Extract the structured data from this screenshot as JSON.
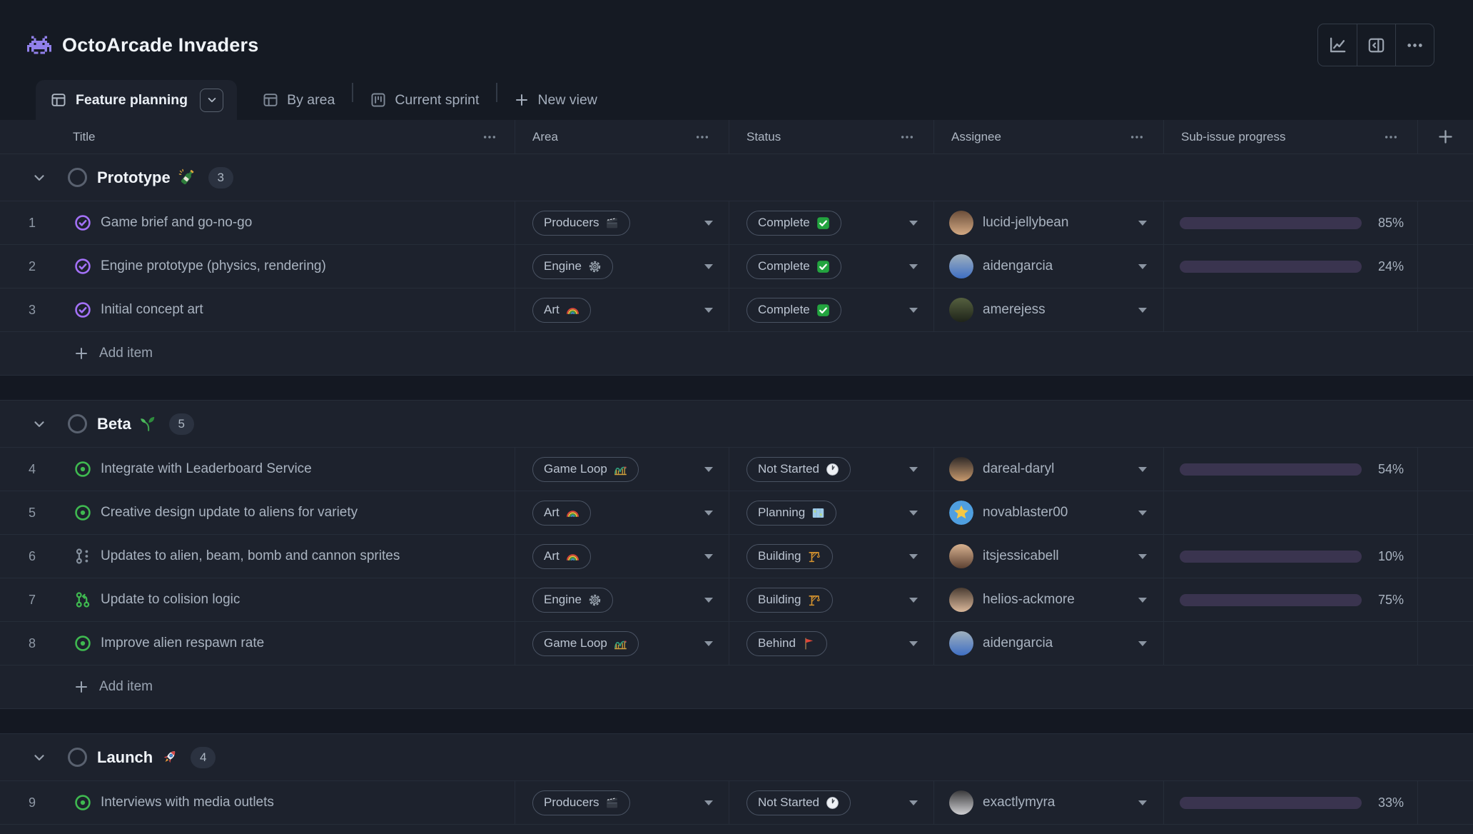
{
  "app": {
    "title": "OctoArcade Invaders",
    "title_icon": "space-invader"
  },
  "header_actions": [
    {
      "name": "insights",
      "icon": "line-chart"
    },
    {
      "name": "side-panel",
      "icon": "panel"
    },
    {
      "name": "more-options",
      "icon": "kebab"
    }
  ],
  "tabs": {
    "items": [
      {
        "label": "Feature planning",
        "icon": "table",
        "active": true,
        "has_menu": true
      },
      {
        "label": "By area",
        "icon": "table",
        "active": false
      },
      {
        "label": "Current sprint",
        "icon": "project",
        "active": false
      }
    ],
    "new_view_label": "New view"
  },
  "table": {
    "columns": [
      {
        "label": "Title"
      },
      {
        "label": "Area"
      },
      {
        "label": "Status"
      },
      {
        "label": "Assignee"
      },
      {
        "label": "Sub-issue progress"
      }
    ],
    "add_item_label": "Add item"
  },
  "groups": [
    {
      "name": "Prototype",
      "emoji": "champagne-bottle",
      "count": 3,
      "add_item": true,
      "gap_after": true,
      "rows": [
        {
          "number": 1,
          "title": "Game brief and go-no-go",
          "title_icon": "issue-closed",
          "area": {
            "label": "Producers",
            "emoji": "clapper-board"
          },
          "status": {
            "label": "Complete",
            "emoji": "check-mark"
          },
          "assignee": {
            "username": "lucid-jellybean",
            "avatar": "photo",
            "avatar_colors": [
              "#6b4e3a",
              "#d3a983"
            ]
          },
          "progress": 85
        },
        {
          "number": 2,
          "title": "Engine prototype (physics, rendering)",
          "title_icon": "issue-closed",
          "area": {
            "label": "Engine",
            "emoji": "gear"
          },
          "status": {
            "label": "Complete",
            "emoji": "check-mark"
          },
          "assignee": {
            "username": "aidengarcia",
            "avatar": "photo",
            "avatar_colors": [
              "#9fb0bd",
              "#3f6fc4"
            ]
          },
          "progress": 24
        },
        {
          "number": 3,
          "title": "Initial concept art",
          "title_icon": "issue-closed",
          "area": {
            "label": "Art",
            "emoji": "rainbow"
          },
          "status": {
            "label": "Complete",
            "emoji": "check-mark"
          },
          "assignee": {
            "username": "amerejess",
            "avatar": "photo",
            "avatar_colors": [
              "#55603f",
              "#1f241a"
            ]
          },
          "progress": null
        }
      ]
    },
    {
      "name": "Beta",
      "emoji": "seedling",
      "count": 5,
      "add_item": true,
      "gap_after": true,
      "rows": [
        {
          "number": 4,
          "title": "Integrate with Leaderboard Service",
          "title_icon": "issue-open",
          "area": {
            "label": "Game Loop",
            "emoji": "roller-coaster"
          },
          "status": {
            "label": "Not Started",
            "emoji": "clock"
          },
          "assignee": {
            "username": "dareal-daryl",
            "avatar": "photo",
            "avatar_colors": [
              "#2f2a28",
              "#c89a6e"
            ]
          },
          "progress": 54
        },
        {
          "number": 5,
          "title": "Creative design update to aliens for variety",
          "title_icon": "issue-open",
          "area": {
            "label": "Art",
            "emoji": "rainbow"
          },
          "status": {
            "label": "Planning",
            "emoji": "world-map"
          },
          "assignee": {
            "username": "novablaster00",
            "avatar": "star",
            "avatar_colors": [
              "#4f9fe0",
              "#4f9fe0"
            ]
          },
          "progress": null
        },
        {
          "number": 6,
          "title": "Updates to alien, beam, bomb and cannon sprites",
          "title_icon": "merge-queue",
          "area": {
            "label": "Art",
            "emoji": "rainbow"
          },
          "status": {
            "label": "Building",
            "emoji": "crane"
          },
          "assignee": {
            "username": "itsjessicabell",
            "avatar": "photo",
            "avatar_colors": [
              "#d7b18f",
              "#5d4233"
            ]
          },
          "progress": 10
        },
        {
          "number": 7,
          "title": "Update to colision logic",
          "title_icon": "pull-request",
          "area": {
            "label": "Engine",
            "emoji": "gear"
          },
          "status": {
            "label": "Building",
            "emoji": "crane"
          },
          "assignee": {
            "username": "helios-ackmore",
            "avatar": "photo",
            "avatar_colors": [
              "#4a3c32",
              "#d9b79a"
            ]
          },
          "progress": 75
        },
        {
          "number": 8,
          "title": "Improve alien respawn rate",
          "title_icon": "issue-open",
          "area": {
            "label": "Game Loop",
            "emoji": "roller-coaster"
          },
          "status": {
            "label": "Behind",
            "emoji": "triangular-flag"
          },
          "assignee": {
            "username": "aidengarcia",
            "avatar": "photo",
            "avatar_colors": [
              "#9fb0bd",
              "#3f6fc4"
            ]
          },
          "progress": null
        }
      ]
    },
    {
      "name": "Launch",
      "emoji": "rocket",
      "count": 4,
      "add_item": false,
      "gap_after": false,
      "rows": [
        {
          "number": 9,
          "title": "Interviews with media outlets",
          "title_icon": "issue-open",
          "area": {
            "label": "Producers",
            "emoji": "clapper-board"
          },
          "status": {
            "label": "Not Started",
            "emoji": "clock"
          },
          "assignee": {
            "username": "exactlymyra",
            "avatar": "photo",
            "avatar_colors": [
              "#3a3a3c",
              "#cfcfd2"
            ]
          },
          "progress": 33
        }
      ]
    }
  ],
  "colors": {
    "accent_purple": "#8a63e8",
    "progress_track": "#3a344f",
    "issue_open_green": "#3fb950",
    "issue_done_purple": "#a371f7",
    "surface": "#1d222d",
    "canvas": "#151a23",
    "border": "#262d39"
  }
}
